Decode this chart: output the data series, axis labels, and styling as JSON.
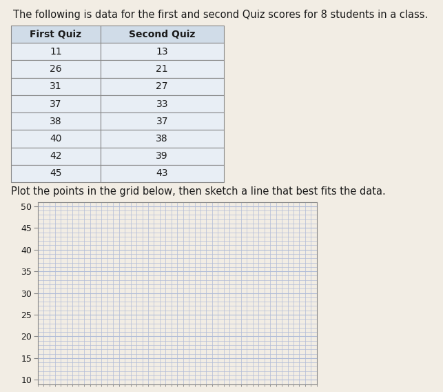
{
  "title": "The following is data for the first and second Quiz scores for 8 students in a class.",
  "table_headers": [
    "First Quiz",
    "Second Quiz"
  ],
  "first_quiz": [
    11,
    26,
    31,
    37,
    38,
    40,
    42,
    45
  ],
  "second_quiz": [
    13,
    21,
    27,
    33,
    37,
    38,
    39,
    43
  ],
  "plot_instruction": "Plot the points in the grid below, then sketch a line that best fits the data.",
  "y_ticks": [
    10,
    15,
    20,
    25,
    30,
    35,
    40,
    45,
    50
  ],
  "y_min": 9,
  "y_max": 51,
  "x_min": 0,
  "x_max": 48,
  "grid_color": "#b0bcd8",
  "table_header_bg": "#d0dce8",
  "table_cell_bg": "#e8eef5",
  "table_border_color": "#888888",
  "background_color": "#f2ede4",
  "text_color": "#1a1a1a",
  "title_fontsize": 10.5,
  "table_fontsize": 10,
  "instruction_fontsize": 10.5,
  "axis_fontsize": 9
}
